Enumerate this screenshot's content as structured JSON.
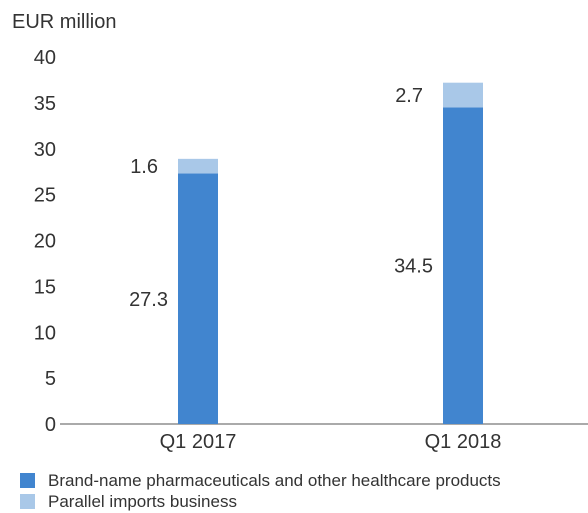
{
  "chart_data": {
    "type": "bar",
    "stacked": true,
    "unit_label": "EUR million",
    "categories": [
      "Q1 2017",
      "Q1 2018"
    ],
    "ylim": [
      0,
      40
    ],
    "yticks": [
      0,
      5,
      10,
      15,
      20,
      25,
      30,
      35,
      40
    ],
    "grid": false,
    "legend_position": "bottom",
    "series": [
      {
        "name": "Brand-name pharmaceuticals and other healthcare products",
        "values": [
          27.3,
          34.5
        ],
        "labels": [
          "27.3",
          "34.5"
        ],
        "color": "#4185cf"
      },
      {
        "name": "Parallel imports business",
        "values": [
          1.6,
          2.7
        ],
        "labels": [
          "1.6",
          "2.7"
        ],
        "color": "#a9c8e8"
      }
    ]
  }
}
